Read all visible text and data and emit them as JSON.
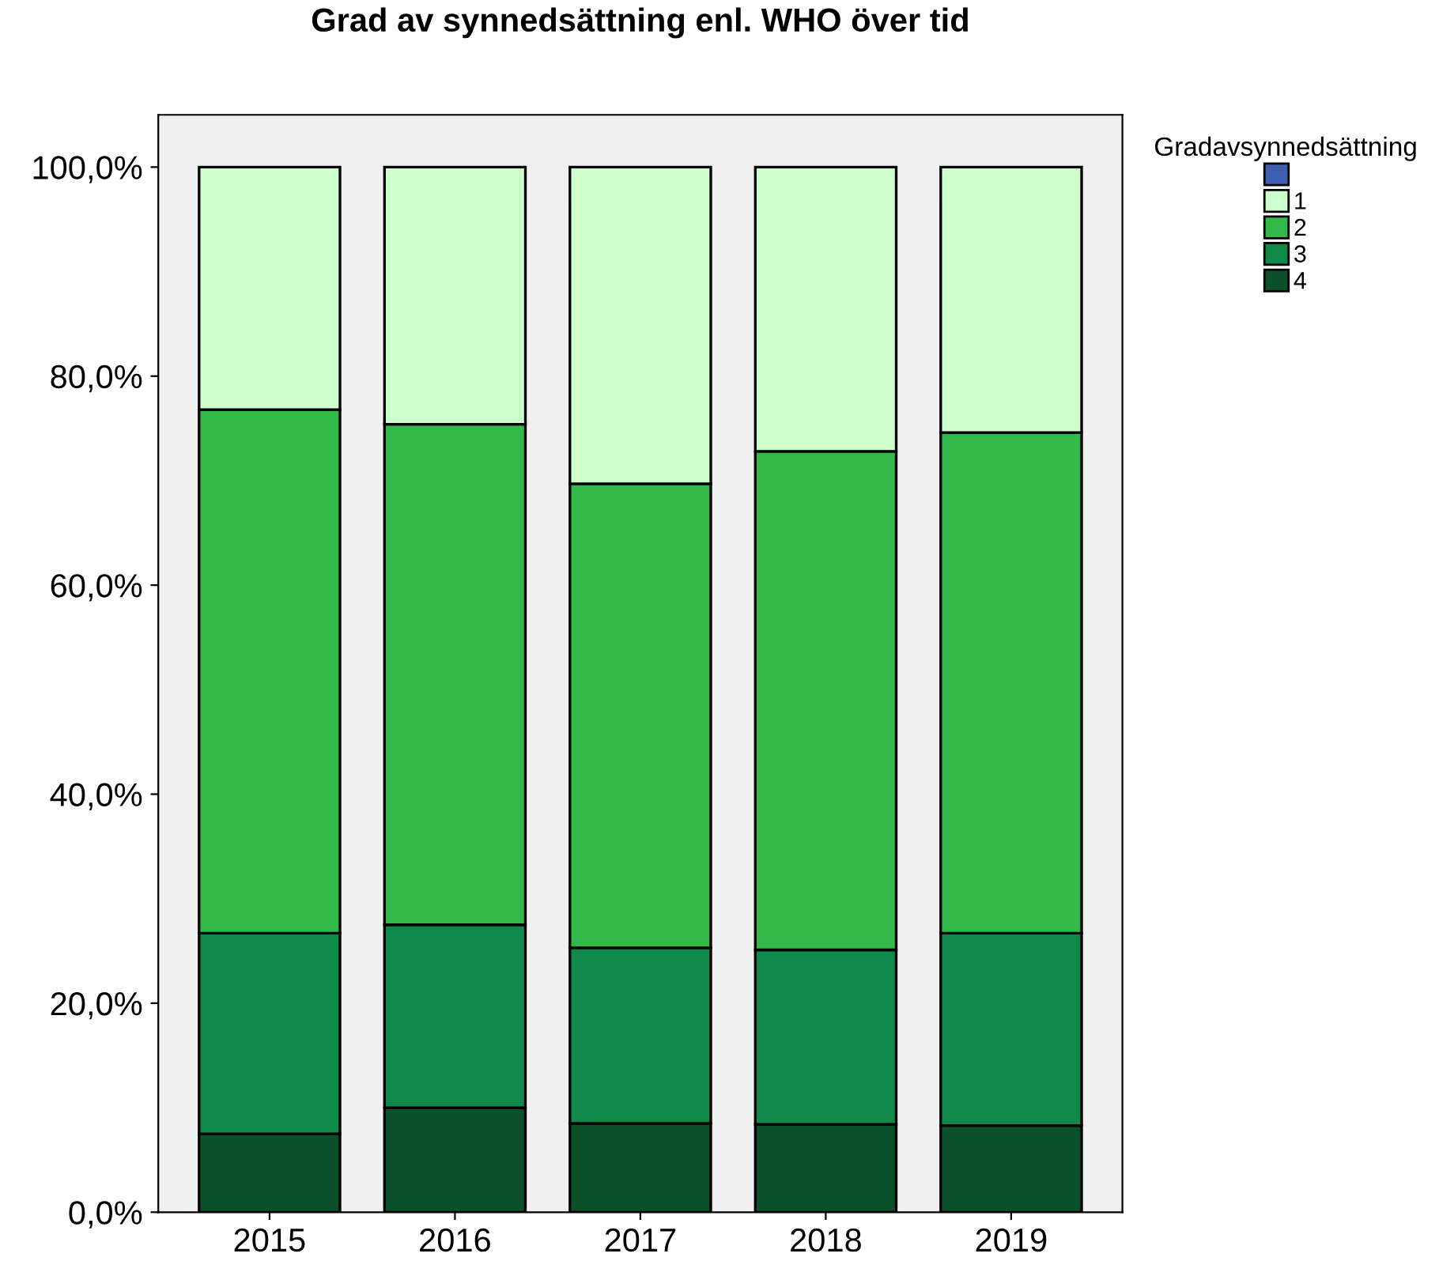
{
  "chart_data": {
    "type": "bar",
    "title": "Grad av synnedsättning enl. WHO över tid",
    "legend_title": "Gradavsynnedsättning",
    "categories": [
      "2015",
      "2016",
      "2017",
      "2018",
      "2019"
    ],
    "stacked": true,
    "grid": false,
    "legend": "right",
    "series": [
      {
        "name": "4",
        "color": "#0a5028",
        "values": [
          7.5,
          10.0,
          8.5,
          8.4,
          8.3
        ]
      },
      {
        "name": "3",
        "color": "#0f8a4a",
        "values": [
          19.2,
          17.5,
          16.8,
          16.7,
          18.4
        ]
      },
      {
        "name": "2",
        "color": "#33b84a",
        "values": [
          50.1,
          47.9,
          44.4,
          47.7,
          47.9
        ]
      },
      {
        "name": "1",
        "color": "#ccffcc",
        "values": [
          23.2,
          24.6,
          30.3,
          27.2,
          25.4
        ]
      },
      {
        "color": "#3f5fb0",
        "values": [
          0,
          0,
          0,
          0,
          0
        ]
      }
    ],
    "ylim": [
      0,
      100
    ],
    "yticks": [
      {
        "value": 0,
        "label": "0,0%"
      },
      {
        "value": 20,
        "label": "20,0%"
      },
      {
        "value": 40,
        "label": "40,0%"
      },
      {
        "value": 60,
        "label": "60,0%"
      },
      {
        "value": 80,
        "label": "80,0%"
      },
      {
        "value": 100,
        "label": "100,0%"
      }
    ]
  }
}
